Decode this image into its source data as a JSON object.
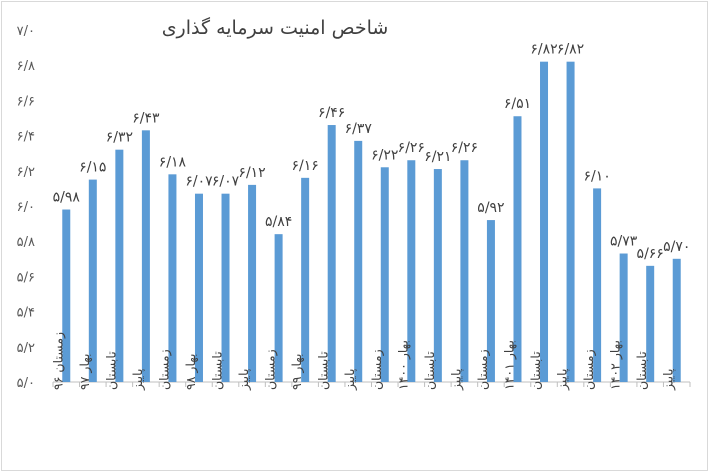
{
  "chart_data": {
    "type": "bar",
    "title": "شاخص امنیت سرمایه گذاری",
    "xlabel": "",
    "ylabel": "",
    "ylim": [
      5.0,
      7.0
    ],
    "yticks": [
      "۵/۰",
      "۵/۲",
      "۵/۴",
      "۵/۶",
      "۵/۸",
      "۶/۰",
      "۶/۲",
      "۶/۴",
      "۶/۶",
      "۶/۸",
      "۷/۰"
    ],
    "ytick_values": [
      5.0,
      5.2,
      5.4,
      5.6,
      5.8,
      6.0,
      6.2,
      6.4,
      6.6,
      6.8,
      7.0
    ],
    "bar_color": "#5b9bd5",
    "grid": false,
    "categories": [
      "زمستان ۹۶",
      "بهار ۹۷",
      "تابستان",
      "پاییز",
      "زمستان",
      "بهار ۹۸",
      "تابستان",
      "پاییز",
      "زمستان",
      "بهار ۹۹",
      "تابستان",
      "پاییز",
      "زمستان",
      "بهار ۱۴۰۰",
      "تابستان",
      "پاییز",
      "زمستان",
      "بهار ۱۴۰۱",
      "تابستان",
      "پاییز",
      "زمستان",
      "بهار ۱۴۰۲",
      "تابستان",
      "پاییز"
    ],
    "values": [
      5.98,
      6.15,
      6.32,
      6.43,
      6.18,
      6.07,
      6.07,
      6.12,
      5.84,
      6.16,
      6.46,
      6.37,
      6.22,
      6.26,
      6.21,
      6.26,
      5.92,
      6.51,
      6.82,
      6.82,
      6.1,
      5.73,
      5.66,
      5.7
    ],
    "data_labels": [
      "۵/۹۸",
      "۶/۱۵",
      "۶/۳۲",
      "۶/۴۳",
      "۶/۱۸",
      "۶/۰۷",
      "۶/۰۷",
      "۶/۱۲",
      "۵/۸۴",
      "۶/۱۶",
      "۶/۴۶",
      "۶/۳۷",
      "۶/۲۲",
      "۶/۲۶",
      "۶/۲۱",
      "۶/۲۶",
      "۵/۹۲",
      "۶/۵۱",
      "۶/۸۲",
      "۶/۸۲",
      "۶/۱۰",
      "۵/۷۳",
      "۵/۶۶",
      "۵/۷۰"
    ]
  }
}
